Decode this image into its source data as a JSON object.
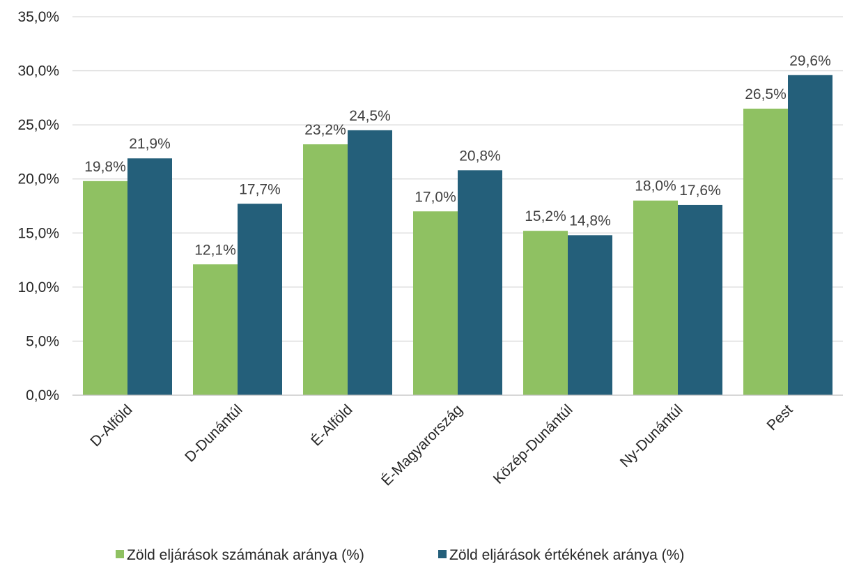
{
  "chart_data": {
    "type": "bar",
    "title": "",
    "xlabel": "",
    "ylabel": "",
    "ylim": [
      0,
      35
    ],
    "ytick_step": 5,
    "ytick_labels": [
      "0,0%",
      "5,0%",
      "10,0%",
      "15,0%",
      "20,0%",
      "25,0%",
      "30,0%",
      "35,0%"
    ],
    "grid": "horizontal",
    "legend_position": "bottom",
    "categories": [
      "D-Alföld",
      "D-Dunántúl",
      "É-Alföld",
      "É-Magyarország",
      "Közép-Dunántúl",
      "Ny-Dunántúl",
      "Pest"
    ],
    "series": [
      {
        "name": "Zöld eljárások számának aránya (%)",
        "color": "#8fc162",
        "values": [
          19.8,
          12.1,
          23.2,
          17.0,
          15.2,
          18.0,
          26.5
        ],
        "value_labels": [
          "19,8%",
          "12,1%",
          "23,2%",
          "17,0%",
          "15,2%",
          "18,0%",
          "26,5%"
        ]
      },
      {
        "name": "Zöld eljárások értékének aránya (%)",
        "color": "#245f7a",
        "values": [
          21.9,
          17.7,
          24.5,
          20.8,
          14.8,
          17.6,
          29.6
        ],
        "value_labels": [
          "21,9%",
          "17,7%",
          "24,5%",
          "20,8%",
          "14,8%",
          "17,6%",
          "29,6%"
        ]
      }
    ]
  }
}
